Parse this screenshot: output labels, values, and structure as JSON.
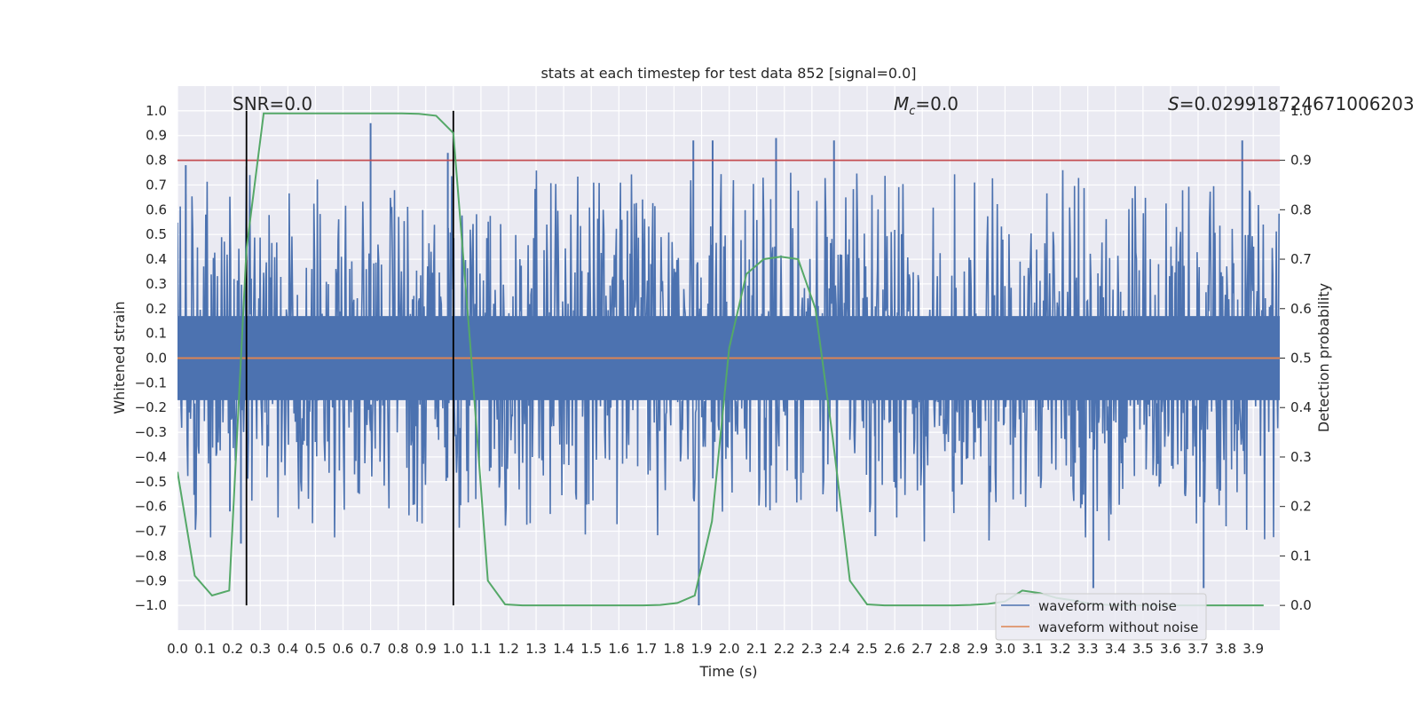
{
  "chart_data": {
    "type": "line",
    "title": "stats at each timestep for test data 852 [signal=0.0]",
    "xlabel": "Time (s)",
    "ylabel": "Whitened strain",
    "ylabel_right": "Detection probability",
    "xlim": [
      0.0,
      3.996
    ],
    "ylim": [
      -1.1,
      1.1
    ],
    "ylim_right": [
      -0.05,
      1.05
    ],
    "xticks": [
      "0.0",
      "0.1",
      "0.2",
      "0.3",
      "0.4",
      "0.5",
      "0.6",
      "0.7",
      "0.8",
      "0.9",
      "1.0",
      "1.1",
      "1.2",
      "1.3",
      "1.4",
      "1.5",
      "1.6",
      "1.7",
      "1.8",
      "1.9",
      "2.0",
      "2.1",
      "2.2",
      "2.3",
      "2.4",
      "2.5",
      "2.6",
      "2.7",
      "2.8",
      "2.9",
      "3.0",
      "3.1",
      "3.2",
      "3.3",
      "3.4",
      "3.5",
      "3.6",
      "3.7",
      "3.8",
      "3.9"
    ],
    "yticks_left": [
      "1.0",
      "0.9",
      "0.8",
      "0.7",
      "0.6",
      "0.5",
      "0.4",
      "0.3",
      "0.2",
      "0.1",
      "0.0",
      "−0.1",
      "−0.2",
      "−0.3",
      "−0.4",
      "−0.5",
      "−0.6",
      "−0.7",
      "−0.8",
      "−0.9",
      "−1.0"
    ],
    "yticks_right": [
      "1.0",
      "0.9",
      "0.8",
      "0.7",
      "0.6",
      "0.5",
      "0.4",
      "0.3",
      "0.2",
      "0.1",
      "0.0"
    ],
    "annotations": {
      "snr": "SNR=0.0",
      "mc_symbol": "M",
      "mc_sub": "c",
      "mc_value": "=0.0",
      "s_symbol": "S",
      "s_value": "=0.029918724671006203"
    },
    "threshold_right": 0.9,
    "vlines": [
      0.25,
      1.0
    ],
    "series": [
      {
        "name": "waveform with noise",
        "color": "#4c72b0",
        "note": "dense noise, envelope approx ±0.3 to ±0.95",
        "spikes": [
          {
            "t": 0.03,
            "v": 0.78
          },
          {
            "t": 0.19,
            "v": -0.62
          },
          {
            "t": 0.23,
            "v": -0.75
          },
          {
            "t": 0.7,
            "v": 0.95
          },
          {
            "t": 0.98,
            "v": 0.83
          },
          {
            "t": 1.89,
            "v": -1.0
          },
          {
            "t": 1.87,
            "v": 0.88
          },
          {
            "t": 1.94,
            "v": 0.88
          },
          {
            "t": 2.17,
            "v": 0.89
          },
          {
            "t": 2.38,
            "v": 0.88
          },
          {
            "t": 2.53,
            "v": -0.72
          },
          {
            "t": 3.32,
            "v": -0.93
          },
          {
            "t": 3.72,
            "v": -0.93
          },
          {
            "t": 3.86,
            "v": 0.88
          }
        ]
      },
      {
        "name": "waveform without noise",
        "color": "#dd8452",
        "x": [
          0.0,
          3.996
        ],
        "values": [
          0.0,
          0.0
        ]
      },
      {
        "name": "Detection probability",
        "color": "#55a868",
        "axis": "right",
        "x": [
          0.0,
          0.0625,
          0.125,
          0.1875,
          0.25,
          0.3125,
          0.375,
          0.4375,
          0.5,
          0.5625,
          0.625,
          0.6875,
          0.75,
          0.8125,
          0.875,
          0.9375,
          1.0,
          1.0625,
          1.125,
          1.1875,
          1.25,
          1.3125,
          1.375,
          1.4375,
          1.5,
          1.5625,
          1.625,
          1.6875,
          1.75,
          1.8125,
          1.875,
          1.9375,
          2.0,
          2.0625,
          2.125,
          2.1875,
          2.25,
          2.3125,
          2.375,
          2.4375,
          2.5,
          2.5625,
          2.625,
          2.6875,
          2.75,
          2.8125,
          2.875,
          2.9375,
          3.0,
          3.0625,
          3.125,
          3.1875,
          3.25,
          3.3125,
          3.375,
          3.4375,
          3.5,
          3.5625,
          3.625,
          3.6875,
          3.75,
          3.8125,
          3.875,
          3.9375
        ],
        "values": [
          0.27,
          0.06,
          0.02,
          0.03,
          0.72,
          0.995,
          0.995,
          0.995,
          0.995,
          0.995,
          0.995,
          0.995,
          0.995,
          0.995,
          0.994,
          0.99,
          0.955,
          0.52,
          0.05,
          0.002,
          0.0,
          0.0,
          0.0,
          0.0,
          0.0,
          0.0,
          0.0,
          0.0,
          0.001,
          0.005,
          0.02,
          0.17,
          0.52,
          0.67,
          0.7,
          0.705,
          0.7,
          0.6,
          0.34,
          0.05,
          0.002,
          0.0,
          0.0,
          0.0,
          0.0,
          0.0,
          0.001,
          0.003,
          0.008,
          0.03,
          0.025,
          0.015,
          0.01,
          0.003,
          0.001,
          0.0,
          0.0,
          0.0,
          0.0,
          0.0,
          0.0,
          0.0,
          0.0,
          0.0
        ]
      }
    ],
    "legend": {
      "placement": "bottom-right",
      "entries": [
        "waveform with noise",
        "waveform without noise"
      ]
    },
    "colors": {
      "background": "#eaeaf2",
      "grid": "#ffffff",
      "noise": "#4c72b0",
      "clean": "#dd8452",
      "prob": "#55a868",
      "threshold": "#c44e52",
      "vline": "#000000"
    }
  }
}
